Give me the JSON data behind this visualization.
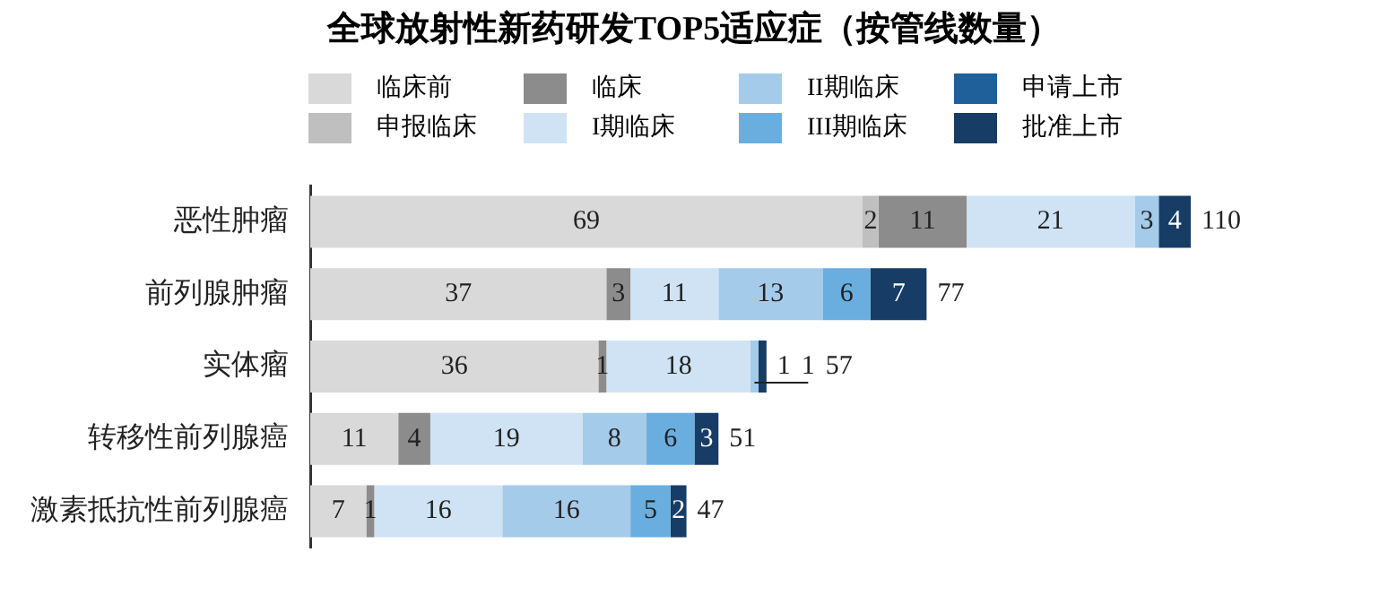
{
  "chart_data": {
    "type": "bar",
    "orientation": "horizontal",
    "stacked": true,
    "title": "全球放射性新药研发TOP5适应症（按管线数量）",
    "categories": [
      "恶性肿瘤",
      "前列腺肿瘤",
      "实体瘤",
      "转移性前列腺癌",
      "激素抵抗性前列腺癌"
    ],
    "series": [
      {
        "name": "临床前",
        "color": "#d9d9d9",
        "values": [
          69,
          37,
          36,
          11,
          7
        ]
      },
      {
        "name": "申报临床",
        "color": "#bfbfbf",
        "values": [
          2,
          null,
          null,
          null,
          null
        ]
      },
      {
        "name": "临床",
        "color": "#8c8c8c",
        "values": [
          11,
          3,
          1,
          4,
          1
        ]
      },
      {
        "name": "I期临床",
        "color": "#cfe3f5",
        "values": [
          21,
          11,
          18,
          19,
          16
        ]
      },
      {
        "name": "II期临床",
        "color": "#a5cbeb",
        "values": [
          3,
          13,
          1,
          8,
          16
        ]
      },
      {
        "name": "III期临床",
        "color": "#6aaee0",
        "values": [
          null,
          6,
          null,
          6,
          5
        ]
      },
      {
        "name": "申请上市",
        "color": "#1f609b",
        "values": [
          null,
          null,
          null,
          null,
          null
        ]
      },
      {
        "name": "批准上市",
        "color": "#173d66",
        "values": [
          4,
          7,
          1,
          3,
          2
        ]
      }
    ],
    "totals": [
      "110",
      "77",
      "57",
      "51",
      "47"
    ],
    "data_labels": true,
    "legend": "top",
    "grid": false,
    "tick_labels": "y"
  }
}
